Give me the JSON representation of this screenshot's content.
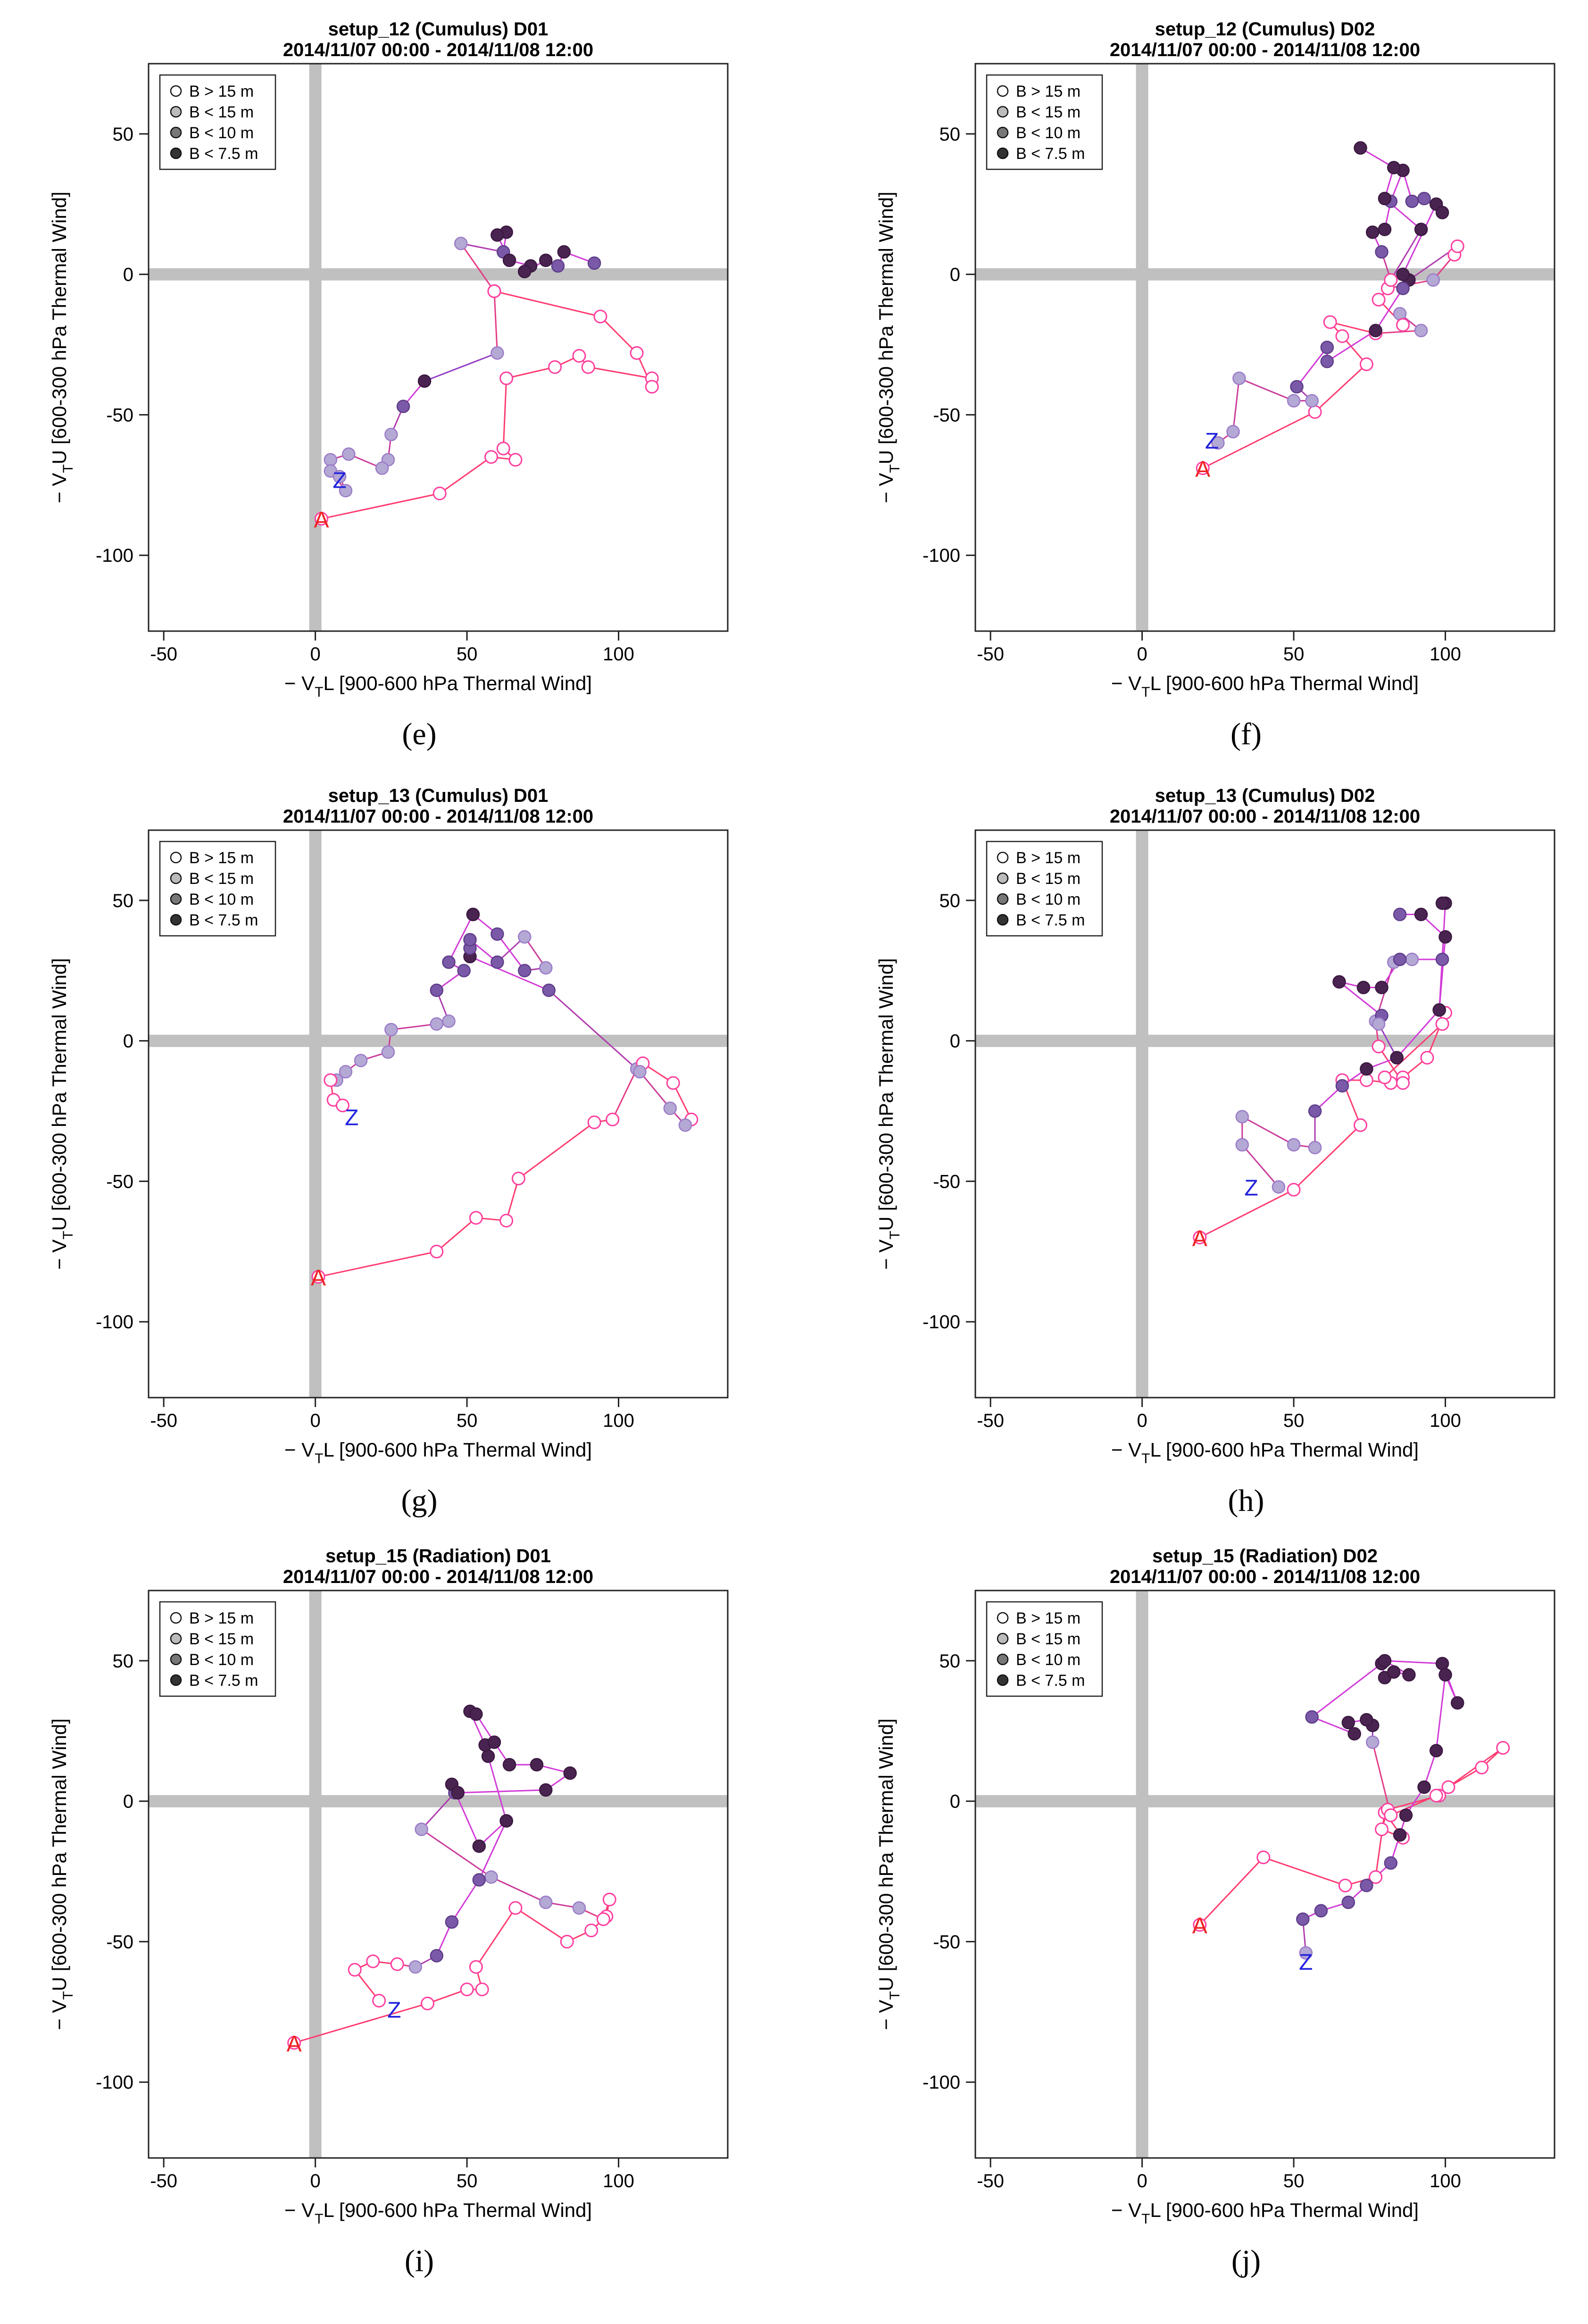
{
  "figure": {
    "common": {
      "xlabel": "−V_T^L [900-600 hPa Thermal Wind]",
      "ylabel": "−V_T^U [600-300 hPa Thermal Wind]",
      "date_range": "2014/11/07 00:00 - 2014/11/08 12:00",
      "xlim": [
        -55,
        136
      ],
      "ylim": [
        -127,
        75
      ],
      "x_ticks": [
        -50,
        0,
        50,
        100
      ],
      "y_ticks": [
        50,
        0,
        -50,
        -100
      ],
      "legend_position": "top-left",
      "start_marker": "A",
      "end_marker": "Z",
      "legend": [
        {
          "label": "B > 15 m",
          "fill": "#ffffff"
        },
        {
          "label": "B < 15 m",
          "fill": "#bbbbbb"
        },
        {
          "label": "B < 10 m",
          "fill": "#777777"
        },
        {
          "label": "B < 7.5 m",
          "fill": "#333333"
        }
      ],
      "colors": {
        "start_marker": "#ee2222",
        "end_marker": "#2222dd",
        "zero_lines": "#c0c0c0",
        "B_gt_15_fill": "#ffffff",
        "B_lt_15_fill": "#b4a8d4",
        "B_lt_10_fill": "#7a5aa8",
        "B_lt_7_5_fill": "#4a2450"
      }
    }
  },
  "chart_data": [
    {
      "type": "line",
      "title": "setup_12 (Cumulus)       D01",
      "subtitle": "2014/11/07 00:00 - 2014/11/08 12:00",
      "caption": "(e)",
      "xlabel": "−V_T^L [900-600 hPa Thermal Wind]",
      "ylabel": "−V_T^U [600-300 hPa Thermal Wind]",
      "points": [
        [
          2,
          -87
        ],
        [
          41,
          -78
        ],
        [
          58,
          -65
        ],
        [
          66,
          -66
        ],
        [
          62,
          -62
        ],
        [
          63,
          -37
        ],
        [
          79,
          -33
        ],
        [
          87,
          -29
        ],
        [
          90,
          -33
        ],
        [
          111,
          -37
        ],
        [
          111,
          -40
        ],
        [
          106,
          -28
        ],
        [
          94,
          -15
        ],
        [
          59,
          -6
        ],
        [
          60,
          -28
        ],
        [
          36,
          -38
        ],
        [
          29,
          -47
        ],
        [
          25,
          -57
        ],
        [
          24,
          -66
        ],
        [
          22,
          -69
        ],
        [
          11,
          -64
        ],
        [
          5,
          -66
        ],
        [
          5,
          -70
        ],
        [
          10,
          -77
        ],
        [
          8,
          -72
        ]
      ],
      "B": [
        0,
        0,
        0,
        0,
        0,
        0,
        0,
        0,
        0,
        0,
        0,
        0,
        0,
        0,
        1,
        3,
        2,
        1,
        1,
        1,
        1,
        1,
        1,
        1,
        1
      ],
      "loop": [
        [
          59,
          -6
        ],
        [
          48,
          11
        ],
        [
          62,
          8
        ],
        [
          63,
          15
        ],
        [
          60,
          14
        ],
        [
          64,
          5
        ],
        [
          71,
          3
        ],
        [
          69,
          1
        ],
        [
          76,
          5
        ],
        [
          80,
          3
        ],
        [
          82,
          8
        ],
        [
          92,
          4
        ]
      ],
      "loop_B": [
        0,
        1,
        2,
        3,
        3,
        3,
        3,
        3,
        3,
        2,
        3,
        2
      ],
      "start_label": "A",
      "end_label": "Z",
      "start_xy": [
        2,
        -87
      ],
      "end_xy": [
        8,
        -73
      ]
    },
    {
      "type": "line",
      "title": "setup_12 (Cumulus)       D02",
      "subtitle": "2014/11/07 00:00 - 2014/11/08 12:00",
      "caption": "(f)",
      "xlabel": "−V_T^L [900-600 hPa Thermal Wind]",
      "ylabel": "−V_T^U [600-300 hPa Thermal Wind]",
      "points": [
        [
          20,
          -69
        ],
        [
          57,
          -49
        ],
        [
          74,
          -32
        ],
        [
          66,
          -22
        ],
        [
          62,
          -17
        ],
        [
          77,
          -21
        ],
        [
          92,
          -20
        ],
        [
          85,
          -14
        ],
        [
          86,
          -18
        ],
        [
          78,
          -9
        ],
        [
          81,
          -5
        ],
        [
          96,
          -2
        ],
        [
          103,
          7
        ],
        [
          104,
          10
        ],
        [
          88,
          -2
        ],
        [
          86,
          -5
        ]
      ],
      "B": [
        0,
        0,
        0,
        0,
        0,
        0,
        1,
        1,
        0,
        0,
        0,
        1,
        0,
        0,
        3,
        2
      ],
      "loop": [
        [
          86,
          -5
        ],
        [
          77,
          -20
        ],
        [
          61,
          -31
        ],
        [
          61,
          -26
        ],
        [
          51,
          -40
        ],
        [
          56,
          -45
        ],
        [
          50,
          -45
        ],
        [
          32,
          -37
        ],
        [
          30,
          -56
        ],
        [
          25,
          -60
        ]
      ],
      "loop_B": [
        2,
        3,
        2,
        2,
        2,
        1,
        1,
        1,
        1,
        1
      ],
      "loop2": [
        [
          86,
          0
        ],
        [
          97,
          25
        ],
        [
          99,
          22
        ],
        [
          93,
          27
        ],
        [
          89,
          26
        ],
        [
          86,
          37
        ],
        [
          82,
          26
        ],
        [
          80,
          16
        ],
        [
          76,
          15
        ],
        [
          79,
          8
        ],
        [
          82,
          -2
        ],
        [
          92,
          16
        ],
        [
          80,
          27
        ],
        [
          83,
          38
        ],
        [
          72,
          45
        ]
      ],
      "loop2_B": [
        3,
        3,
        3,
        2,
        2,
        3,
        2,
        3,
        3,
        2,
        0,
        3,
        3,
        3,
        3
      ],
      "start_label": "A",
      "end_label": "Z",
      "start_xy": [
        20,
        -69
      ],
      "end_xy": [
        23,
        -59
      ]
    },
    {
      "type": "line",
      "title": "setup_13 (Cumulus)       D01",
      "subtitle": "2014/11/07 00:00 - 2014/11/08 12:00",
      "caption": "(g)",
      "xlabel": "−V_T^L [900-600 hPa Thermal Wind]",
      "ylabel": "−V_T^U [600-300 hPa Thermal Wind]",
      "points": [
        [
          1,
          -84
        ],
        [
          40,
          -75
        ],
        [
          53,
          -63
        ],
        [
          63,
          -64
        ],
        [
          67,
          -49
        ],
        [
          92,
          -29
        ],
        [
          98,
          -28
        ],
        [
          106,
          -10
        ],
        [
          108,
          -8
        ],
        [
          118,
          -15
        ],
        [
          124,
          -28
        ],
        [
          122,
          -30
        ],
        [
          117,
          -24
        ],
        [
          107,
          -11
        ],
        [
          77,
          18
        ],
        [
          51,
          30
        ],
        [
          51,
          33
        ],
        [
          51,
          36
        ],
        [
          60,
          28
        ],
        [
          69,
          37
        ],
        [
          76,
          26
        ],
        [
          69,
          25
        ],
        [
          60,
          38
        ],
        [
          52,
          45
        ]
      ],
      "B": [
        0,
        0,
        0,
        0,
        0,
        0,
        0,
        1,
        0,
        0,
        0,
        1,
        1,
        1,
        2,
        3,
        2,
        2,
        2,
        1,
        1,
        2,
        2,
        3
      ],
      "loop2": [
        [
          52,
          45
        ],
        [
          44,
          28
        ],
        [
          49,
          25
        ],
        [
          40,
          18
        ],
        [
          44,
          7
        ],
        [
          40,
          6
        ],
        [
          25,
          4
        ],
        [
          24,
          -4
        ],
        [
          15,
          -7
        ],
        [
          10,
          -11
        ],
        [
          7,
          -14
        ],
        [
          5,
          -14
        ],
        [
          6,
          -21
        ],
        [
          9,
          -23
        ]
      ],
      "loop2_B": [
        3,
        2,
        2,
        2,
        1,
        1,
        1,
        1,
        1,
        1,
        1,
        0,
        0,
        0
      ],
      "start_label": "A",
      "end_label": "Z",
      "start_xy": [
        1,
        -84
      ],
      "end_xy": [
        12,
        -27
      ]
    },
    {
      "type": "line",
      "title": "setup_13 (Cumulus)       D02",
      "subtitle": "2014/11/07 00:00 - 2014/11/08 12:00",
      "caption": "(h)",
      "xlabel": "−V_T^L [900-600 hPa Thermal Wind]",
      "ylabel": "−V_T^U [600-300 hPa Thermal Wind]",
      "points": [
        [
          19,
          -70
        ],
        [
          50,
          -53
        ],
        [
          72,
          -30
        ],
        [
          66,
          -14
        ],
        [
          74,
          -14
        ],
        [
          82,
          -15
        ],
        [
          86,
          -13
        ],
        [
          94,
          -6
        ],
        [
          100,
          10
        ],
        [
          99,
          6
        ],
        [
          80,
          -13
        ],
        [
          86,
          -15
        ],
        [
          78,
          -2
        ],
        [
          77,
          7
        ],
        [
          83,
          28
        ],
        [
          89,
          29
        ]
      ],
      "B": [
        0,
        0,
        0,
        0,
        0,
        0,
        0,
        0,
        0,
        0,
        0,
        0,
        0,
        1,
        1,
        1
      ],
      "loop2": [
        [
          89,
          29
        ],
        [
          99,
          29
        ],
        [
          85,
          29
        ],
        [
          79,
          19
        ],
        [
          73,
          19
        ],
        [
          65,
          21
        ],
        [
          79,
          9
        ],
        [
          78,
          6
        ],
        [
          84,
          -6
        ],
        [
          98,
          11
        ],
        [
          100,
          37
        ],
        [
          92,
          45
        ],
        [
          85,
          45
        ]
      ],
      "loop2_B": [
        1,
        2,
        2,
        3,
        3,
        3,
        2,
        1,
        3,
        3,
        3,
        3,
        2
      ],
      "loop3": [
        [
          98,
          11
        ],
        [
          100,
          49
        ],
        [
          99,
          49
        ]
      ],
      "loop3_B": [
        3,
        3,
        3
      ],
      "loop4": [
        [
          84,
          -6
        ],
        [
          74,
          -10
        ],
        [
          66,
          -16
        ],
        [
          57,
          -25
        ],
        [
          57,
          -38
        ],
        [
          50,
          -37
        ],
        [
          33,
          -27
        ],
        [
          33,
          -37
        ],
        [
          45,
          -52
        ]
      ],
      "loop4_B": [
        3,
        3,
        2,
        2,
        1,
        1,
        1,
        1,
        1
      ],
      "start_label": "A",
      "end_label": "Z",
      "start_xy": [
        19,
        -70
      ],
      "end_xy": [
        36,
        -52
      ]
    },
    {
      "type": "line",
      "title": "setup_15 (Radiation)       D01",
      "subtitle": "2014/11/07 00:00 - 2014/11/08 12:00",
      "caption": "(i)",
      "xlabel": "−V_T^L [900-600 hPa Thermal Wind]",
      "ylabel": "−V_T^U [600-300 hPa Thermal Wind]",
      "points": [
        [
          -7,
          -86
        ],
        [
          37,
          -72
        ],
        [
          50,
          -67
        ],
        [
          55,
          -67
        ],
        [
          53,
          -59
        ],
        [
          66,
          -38
        ],
        [
          83,
          -50
        ],
        [
          91,
          -46
        ],
        [
          96,
          -41
        ],
        [
          97,
          -35
        ],
        [
          95,
          -42
        ],
        [
          87,
          -38
        ],
        [
          76,
          -36
        ],
        [
          58,
          -27
        ],
        [
          35,
          -10
        ],
        [
          46,
          3
        ],
        [
          45,
          6
        ],
        [
          54,
          -16
        ],
        [
          63,
          -7
        ],
        [
          57,
          16
        ],
        [
          56,
          20
        ],
        [
          51,
          32
        ],
        [
          53,
          31
        ],
        [
          59,
          21
        ],
        [
          64,
          13
        ],
        [
          73,
          13
        ],
        [
          84,
          10
        ],
        [
          76,
          4
        ],
        [
          47,
          3
        ]
      ],
      "B": [
        0,
        0,
        0,
        0,
        0,
        0,
        0,
        0,
        0,
        0,
        0,
        1,
        1,
        1,
        1,
        2,
        3,
        3,
        3,
        3,
        3,
        3,
        3,
        3,
        3,
        3,
        3,
        3,
        3
      ],
      "loop2": [
        [
          63,
          -7
        ],
        [
          54,
          -28
        ],
        [
          45,
          -43
        ],
        [
          40,
          -55
        ],
        [
          33,
          -59
        ],
        [
          27,
          -58
        ],
        [
          19,
          -57
        ],
        [
          13,
          -60
        ],
        [
          21,
          -71
        ]
      ],
      "loop2_B": [
        3,
        2,
        2,
        2,
        1,
        0,
        0,
        0,
        0
      ],
      "start_label": "A",
      "end_label": "Z",
      "start_xy": [
        -7,
        -86
      ],
      "end_xy": [
        26,
        -74
      ]
    },
    {
      "type": "line",
      "title": "setup_15 (Radiation)       D02",
      "subtitle": "2014/11/07 00:00 - 2014/11/08 12:00",
      "caption": "(j)",
      "xlabel": "−V_T^L [900-600 hPa Thermal Wind]",
      "ylabel": "−V_T^U [600-300 hPa Thermal Wind]",
      "points": [
        [
          19,
          -44
        ],
        [
          40,
          -20
        ],
        [
          67,
          -30
        ],
        [
          77,
          -27
        ],
        [
          80,
          -4
        ],
        [
          86,
          -13
        ],
        [
          79,
          -10
        ],
        [
          81,
          -3
        ],
        [
          98,
          2
        ],
        [
          101,
          5
        ],
        [
          112,
          12
        ],
        [
          119,
          19
        ],
        [
          97,
          2
        ],
        [
          82,
          -5
        ],
        [
          76,
          21
        ],
        [
          76,
          27
        ],
        [
          74,
          29
        ],
        [
          68,
          28
        ],
        [
          70,
          24
        ],
        [
          56,
          30
        ],
        [
          79,
          49
        ],
        [
          80,
          44
        ],
        [
          83,
          46
        ],
        [
          88,
          45
        ],
        [
          80,
          50
        ],
        [
          99,
          49
        ],
        [
          104,
          35
        ],
        [
          100,
          45
        ],
        [
          97,
          18
        ],
        [
          93,
          5
        ],
        [
          87,
          -5
        ],
        [
          85,
          -12
        ]
      ],
      "B": [
        0,
        0,
        0,
        0,
        0,
        0,
        0,
        0,
        0,
        0,
        0,
        0,
        0,
        0,
        1,
        3,
        3,
        3,
        3,
        2,
        3,
        3,
        3,
        3,
        3,
        3,
        3,
        3,
        3,
        3,
        3,
        3
      ],
      "loop2": [
        [
          85,
          -12
        ],
        [
          82,
          -22
        ],
        [
          74,
          -30
        ],
        [
          68,
          -36
        ],
        [
          59,
          -39
        ],
        [
          53,
          -42
        ],
        [
          54,
          -54
        ]
      ],
      "loop2_B": [
        3,
        2,
        2,
        2,
        2,
        2,
        1
      ],
      "start_label": "A",
      "end_label": "Z",
      "start_xy": [
        19,
        -44
      ],
      "end_xy": [
        54,
        -57
      ]
    }
  ]
}
